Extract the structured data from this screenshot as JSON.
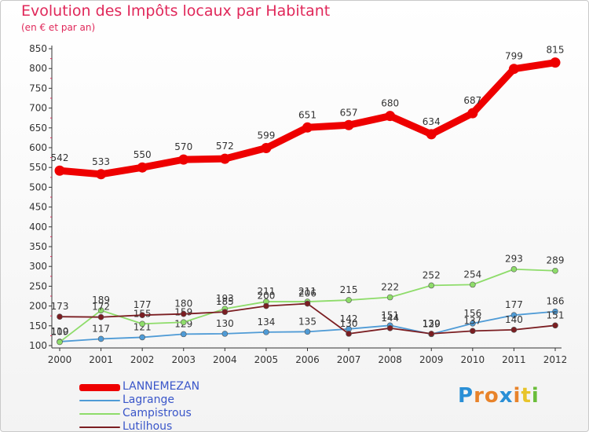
{
  "header": {
    "title": "Evolution des Impôts locaux par Habitant",
    "subtitle": "(en € et par an)"
  },
  "logo": {
    "text": "Proxiti",
    "colors": [
      "#2a8fd6",
      "#e8832a",
      "#e8832a",
      "#2a8fd6",
      "#e8832a",
      "#e8c42a",
      "#6abd3a"
    ]
  },
  "chart_data": {
    "type": "line",
    "categories": [
      "2000",
      "2001",
      "2002",
      "2003",
      "2004",
      "2005",
      "2006",
      "2007",
      "2008",
      "2009",
      "2010",
      "2011",
      "2012"
    ],
    "ylim": [
      100,
      850
    ],
    "yticks": [
      "100",
      "150",
      "200",
      "250",
      "300",
      "350",
      "400",
      "450",
      "500",
      "550",
      "600",
      "650",
      "700",
      "750",
      "800",
      "850"
    ],
    "grid": false,
    "legend_position": "bottom-left",
    "series": [
      {
        "name": "LANNEMEZAN",
        "color": "#ee0000",
        "values": [
          542,
          533,
          550,
          570,
          572,
          599,
          651,
          657,
          680,
          634,
          687,
          799,
          815
        ],
        "labels": [
          "542",
          "533",
          "550",
          "570",
          "572",
          "599",
          "651",
          "657",
          "680",
          "634",
          "687",
          "799",
          "815"
        ]
      },
      {
        "name": "Lagrange",
        "color": "#4f9bd6",
        "values": [
          110,
          117,
          121,
          129,
          130,
          134,
          135,
          142,
          151,
          129,
          156,
          177,
          186
        ],
        "labels": [
          "110",
          "117",
          "121",
          "129",
          "130",
          "134",
          "135",
          "142",
          "151",
          "129",
          "156",
          "177",
          "186"
        ]
      },
      {
        "name": "Campistrous",
        "color": "#8edc6a",
        "values": [
          109,
          189,
          155,
          159,
          193,
          211,
          211,
          215,
          222,
          252,
          254,
          293,
          289
        ],
        "labels": [
          "109",
          "189",
          "155",
          "159",
          "193",
          "211",
          "211",
          "215",
          "222",
          "252",
          "254",
          "293",
          "289"
        ]
      },
      {
        "name": "Lutilhous",
        "color": "#7b1e22",
        "values": [
          173,
          172,
          177,
          180,
          185,
          200,
          206,
          130,
          144,
          130,
          137,
          140,
          151
        ],
        "labels": [
          "173",
          "172",
          "177",
          "180",
          "185",
          "200",
          "206",
          "130",
          "144",
          "130",
          "137",
          "140",
          "151"
        ]
      }
    ]
  }
}
